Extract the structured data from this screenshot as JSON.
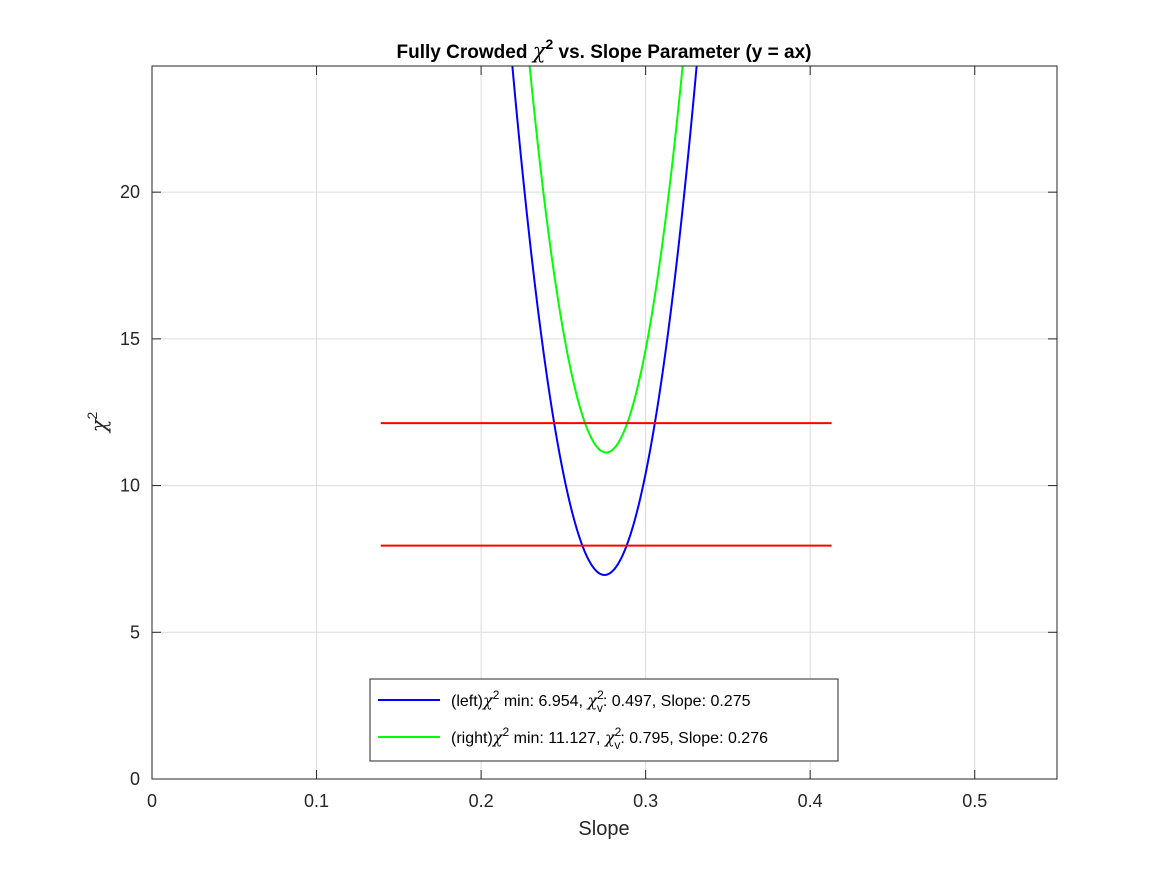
{
  "chart_data": {
    "type": "line",
    "title": {
      "prefix": "Fully Crowded ",
      "symbol": "χ",
      "superscript": "2",
      "suffix": " vs. Slope Parameter (y = ax)"
    },
    "xlabel": "Slope",
    "ylabel": {
      "symbol": "χ",
      "superscript": "2"
    },
    "xlim": [
      0,
      0.55
    ],
    "ylim": [
      0,
      24.3
    ],
    "xticks": [
      0,
      0.1,
      0.2,
      0.3,
      0.4,
      0.5
    ],
    "xtick_labels": [
      "0",
      "0.1",
      "0.2",
      "0.3",
      "0.4",
      "0.5"
    ],
    "yticks": [
      0,
      5,
      10,
      15,
      20
    ],
    "ytick_labels": [
      "0",
      "5",
      "10",
      "15",
      "20"
    ],
    "grid": true,
    "legend_position": "bottom-center",
    "series": [
      {
        "id": "left",
        "name": "(left)χ² min: 6.954, χ²ᵥ: 0.497, Slope: 0.275",
        "legend_parts": {
          "pre": "(left)",
          "sym": "χ",
          "sup": "2",
          "mid": " min: 6.954, ",
          "sym2": "χ",
          "sup2": "2",
          "sub2": "v",
          "post": ": 0.497, Slope: 0.275"
        },
        "color": "#0000ff",
        "curve": "parabola",
        "min_x": 0.275,
        "min_y": 6.954,
        "x": [
          0.219,
          0.23,
          0.24,
          0.25,
          0.26,
          0.27,
          0.275,
          0.28,
          0.29,
          0.3,
          0.31,
          0.32,
          0.331
        ],
        "y": [
          24.3,
          19.1,
          14.8,
          11.3,
          8.8,
          7.3,
          6.954,
          7.2,
          8.6,
          11.1,
          14.7,
          19.3,
          24.3
        ]
      },
      {
        "id": "right",
        "name": "(right)χ² min: 11.127, χ²ᵥ: 0.795, Slope: 0.276",
        "legend_parts": {
          "pre": "(right)",
          "sym": "χ",
          "sup": "2",
          "mid": " min: 11.127, ",
          "sym2": "χ",
          "sup2": "2",
          "sub2": "v",
          "post": ": 0.795, Slope: 0.276"
        },
        "color": "#00ff00",
        "curve": "parabola",
        "min_x": 0.276,
        "min_y": 11.127,
        "x": [
          0.229,
          0.24,
          0.25,
          0.26,
          0.27,
          0.276,
          0.28,
          0.29,
          0.3,
          0.31,
          0.322
        ],
        "y": [
          24.3,
          19.0,
          15.2,
          12.6,
          11.3,
          11.127,
          11.2,
          12.4,
          14.9,
          18.8,
          24.3
        ]
      },
      {
        "id": "threshold-upper",
        "color": "#ff0000",
        "curve": "line",
        "x": [
          0.139,
          0.413
        ],
        "y": [
          12.127,
          12.127
        ]
      },
      {
        "id": "threshold-lower",
        "color": "#ff0000",
        "curve": "line",
        "x": [
          0.139,
          0.413
        ],
        "y": [
          7.954,
          7.954
        ]
      }
    ]
  }
}
